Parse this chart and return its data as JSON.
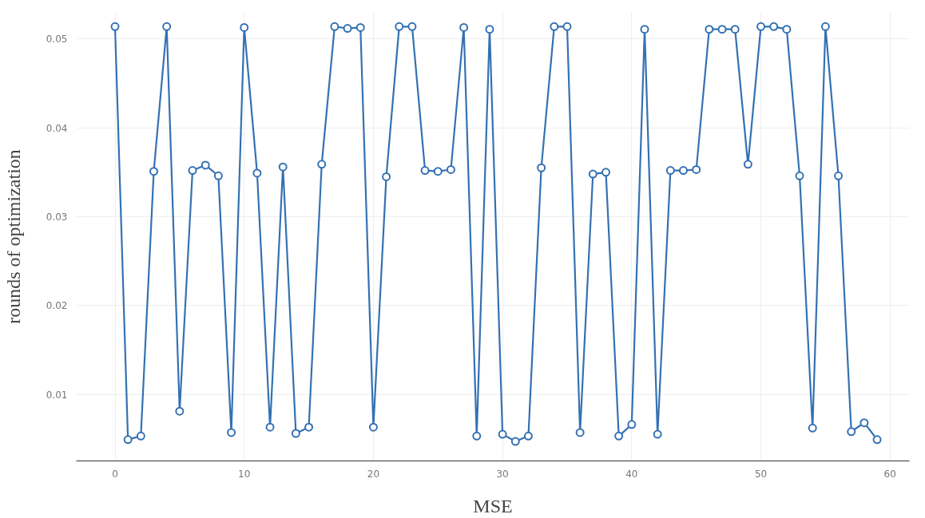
{
  "chart_data": {
    "type": "line",
    "xlabel": "MSE",
    "ylabel": "rounds of optimization",
    "x": [
      0,
      1,
      2,
      3,
      4,
      5,
      6,
      7,
      8,
      9,
      10,
      11,
      12,
      13,
      14,
      15,
      16,
      17,
      18,
      19,
      20,
      21,
      22,
      23,
      24,
      25,
      26,
      27,
      28,
      29,
      30,
      31,
      32,
      33,
      34,
      35,
      36,
      37,
      38,
      39,
      40,
      41,
      42,
      43,
      44,
      45,
      46,
      47,
      48,
      49,
      50,
      51,
      52,
      53,
      54,
      55,
      56,
      57,
      58,
      59
    ],
    "series": [
      {
        "color": "#3471b3",
        "values": [
          0.0514,
          0.0049,
          0.0053,
          0.0351,
          0.0514,
          0.0081,
          0.0352,
          0.0358,
          0.0346,
          0.0057,
          0.0513,
          0.0349,
          0.0063,
          0.0356,
          0.0056,
          0.0063,
          0.0359,
          0.0514,
          0.0512,
          0.0513,
          0.0063,
          0.0345,
          0.0514,
          0.0514,
          0.0352,
          0.0351,
          0.0353,
          0.0513,
          0.0053,
          0.0511,
          0.0055,
          0.0047,
          0.0053,
          0.0355,
          0.0514,
          0.0514,
          0.0057,
          0.0348,
          0.035,
          0.0053,
          0.0066,
          0.0511,
          0.0055,
          0.0352,
          0.0352,
          0.0353,
          0.0511,
          0.0511,
          0.0511,
          0.0359,
          0.0514,
          0.0514,
          0.0511,
          0.0346,
          0.0062,
          0.0514,
          0.0346,
          0.0058,
          0.0068,
          0.0049
        ]
      }
    ],
    "xlim": [
      -3,
      61.5
    ],
    "ylim": [
      0.0025,
      0.053
    ],
    "xticks": [
      0,
      10,
      20,
      30,
      40,
      50,
      60
    ],
    "yticks": [
      0.01,
      0.02,
      0.03,
      0.04,
      0.05
    ],
    "grid": true,
    "marker": "circle",
    "line_style": "solid"
  }
}
